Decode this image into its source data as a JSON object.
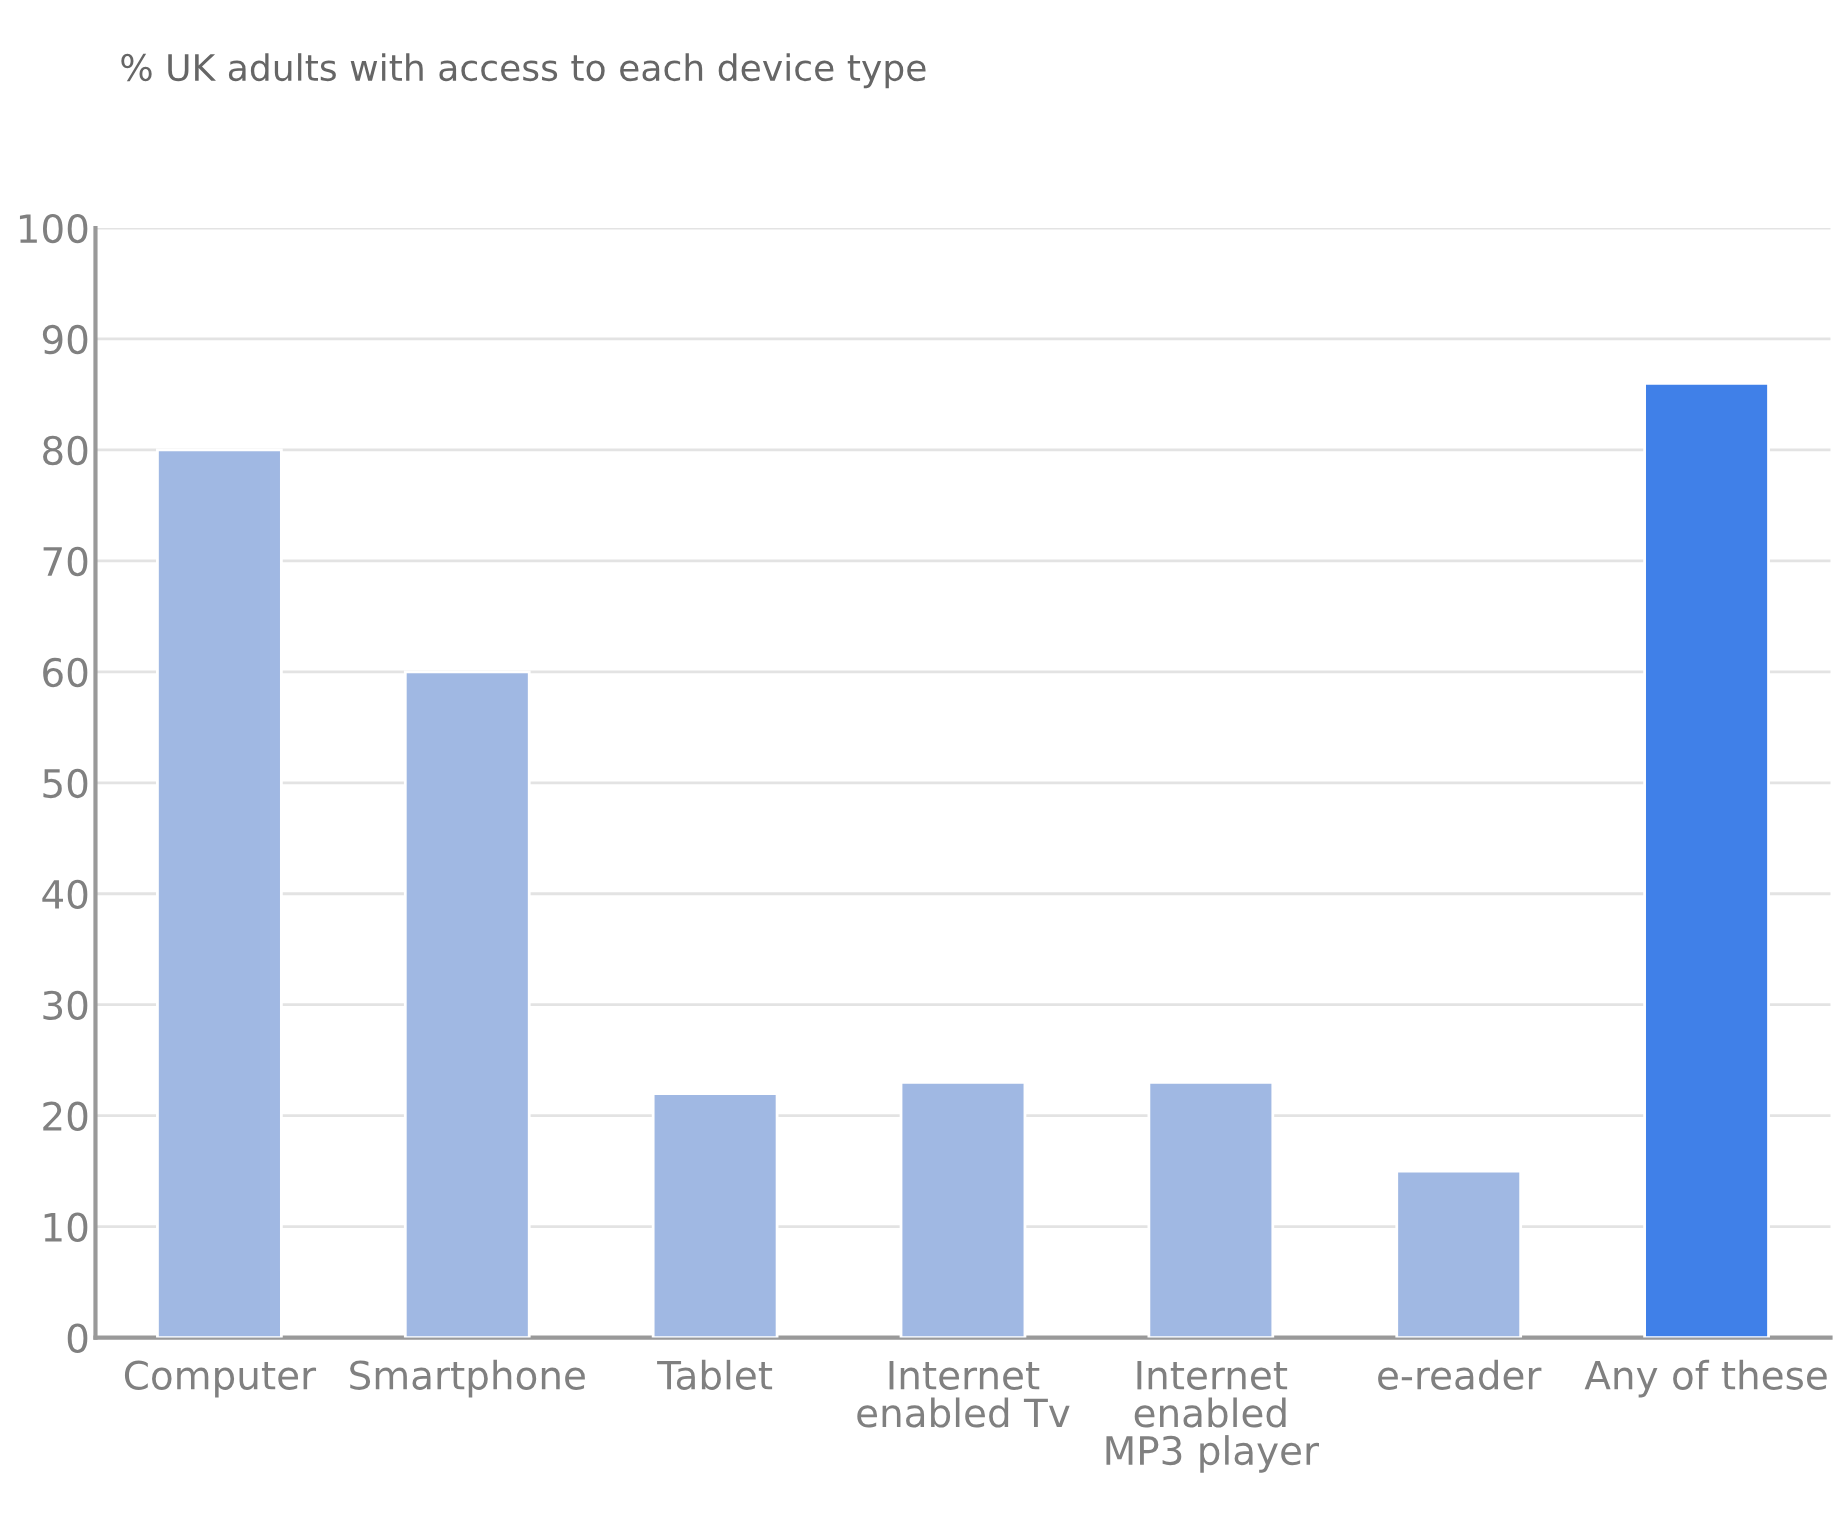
{
  "chart_data": {
    "type": "bar",
    "title": "% UK adults with access to each device type",
    "categories": [
      "Computer",
      "Smartphone",
      "Tablet",
      "Internet\nenabled Tv",
      "Internet\nenabled\nMP3 player",
      "e-reader",
      "Any of these"
    ],
    "values": [
      80,
      60,
      22,
      23,
      23,
      15,
      86
    ],
    "colors": [
      "#a0b8e3",
      "#a0b8e3",
      "#a0b8e3",
      "#a0b8e3",
      "#a0b8e3",
      "#a0b8e3",
      "#4080e8"
    ],
    "ylim": [
      0,
      100
    ],
    "yticks": [
      0,
      10,
      20,
      30,
      40,
      50,
      60,
      70,
      80,
      90,
      100
    ],
    "grid": "y",
    "legend": false
  }
}
